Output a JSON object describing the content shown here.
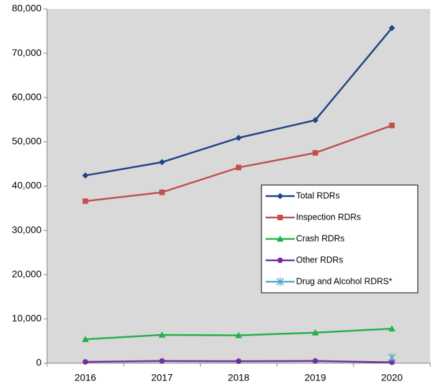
{
  "chart_data": {
    "type": "line",
    "categories": [
      "2016",
      "2017",
      "2018",
      "2019",
      "2020"
    ],
    "series": [
      {
        "name": "Total RDRs",
        "color": "#1f4485",
        "marker": "diamond",
        "values": [
          42400,
          45400,
          50900,
          54900,
          75700
        ]
      },
      {
        "name": "Inspection RDRs",
        "color": "#c0504d",
        "marker": "square",
        "values": [
          36600,
          38600,
          44200,
          47500,
          53700
        ]
      },
      {
        "name": "Crash RDRs",
        "color": "#22b04b",
        "marker": "triangle",
        "values": [
          5400,
          6400,
          6300,
          6900,
          7800
        ]
      },
      {
        "name": "Other RDRs",
        "color": "#7030a0",
        "marker": "circle",
        "values": [
          300,
          500,
          450,
          500,
          200
        ]
      },
      {
        "name": "Drug and Alcohol RDRS*",
        "color": "#4bacc6",
        "marker": "asterisk",
        "values": [
          null,
          null,
          null,
          null,
          1300
        ]
      }
    ],
    "ylim": [
      0,
      80000
    ],
    "yticks": [
      0,
      {
        "value": 10000,
        "label": "10,000"
      },
      {
        "value": 20000,
        "label": "20,000"
      },
      {
        "value": 30000,
        "label": "30,000"
      },
      {
        "value": 40000,
        "label": "40,000"
      },
      {
        "value": 50000,
        "label": "50,000"
      },
      {
        "value": 60000,
        "label": "60,000"
      },
      {
        "value": 70000,
        "label": "70,000"
      },
      {
        "value": 80000,
        "label": "80,000"
      }
    ],
    "grid": false,
    "legend": "right"
  }
}
